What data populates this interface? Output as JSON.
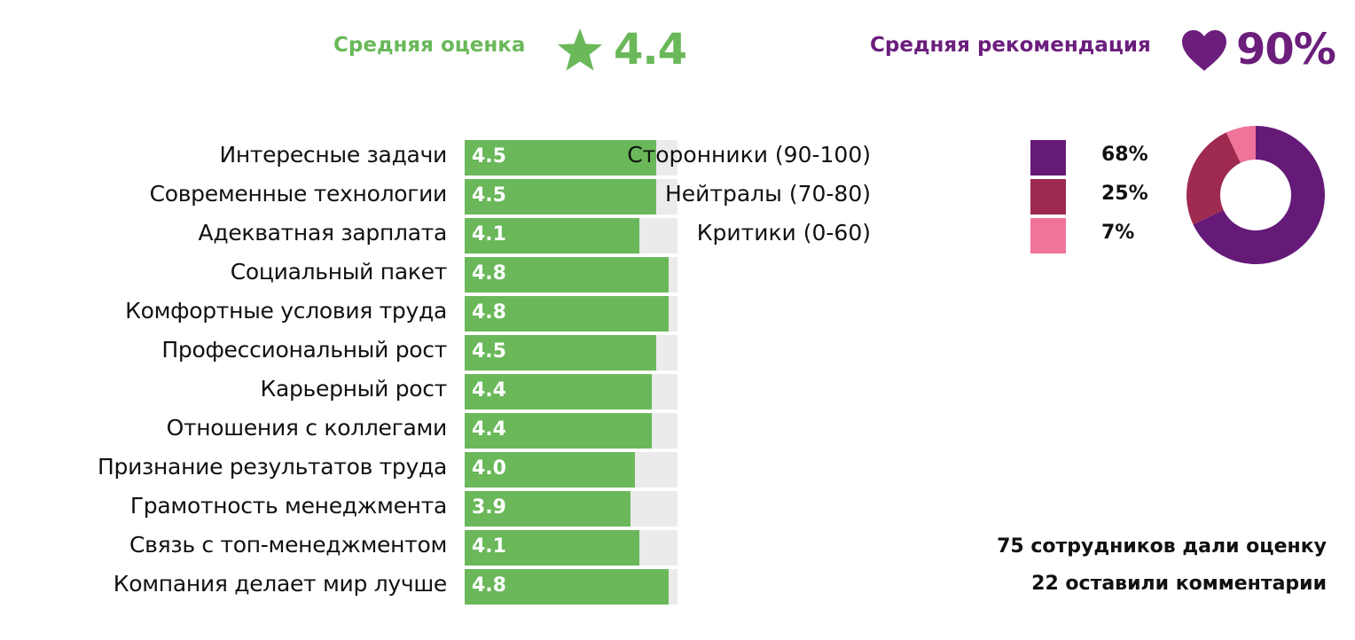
{
  "header": {
    "avg_label": "Средняя оценка",
    "avg_value": "4.4",
    "avg_icon": "star-icon",
    "rec_label": "Средняя рекомендация",
    "rec_value": "90%",
    "rec_icon": "heart-icon"
  },
  "colors": {
    "green": "#6ab85a",
    "purple": "#6b1e7c",
    "track": "#ebebeb",
    "supporters": "#651a78",
    "neutrals": "#9e2a50",
    "critics": "#f07399"
  },
  "chart_data": [
    {
      "type": "bar",
      "orientation": "horizontal",
      "categories": [
        "Интересные задачи",
        "Современные технологии",
        "Адекватная зарплата",
        "Социальный пакет",
        "Комфортные условия труда",
        "Профессиональный рост",
        "Карьерный рост",
        "Отношения с коллегами",
        "Признание результатов труда",
        "Грамотность менеджмента",
        "Связь с топ-менеджментом",
        "Компания делает мир лучше"
      ],
      "values": [
        4.5,
        4.5,
        4.1,
        4.8,
        4.8,
        4.5,
        4.4,
        4.4,
        4.0,
        3.9,
        4.1,
        4.8
      ],
      "value_labels": [
        "4.5",
        "4.5",
        "4.1",
        "4.8",
        "4.8",
        "4.5",
        "4.4",
        "4.4",
        "4.0",
        "3.9",
        "4.1",
        "4.8"
      ],
      "xlim": [
        0,
        5
      ],
      "title": "",
      "xlabel": "",
      "ylabel": "",
      "grid": false
    },
    {
      "type": "pie",
      "donut": true,
      "categories": [
        "Сторонники (90-100)",
        "Нейтралы (70-80)",
        "Критики (0-60)"
      ],
      "values": [
        68,
        25,
        7
      ],
      "value_labels": [
        "68%",
        "25%",
        "7%"
      ],
      "colors": [
        "#651a78",
        "#9e2a50",
        "#f07399"
      ],
      "legend": "left"
    }
  ],
  "footer": {
    "line1": "75 сотрудников дали оценку",
    "line2": "22 оставили комментарии"
  }
}
